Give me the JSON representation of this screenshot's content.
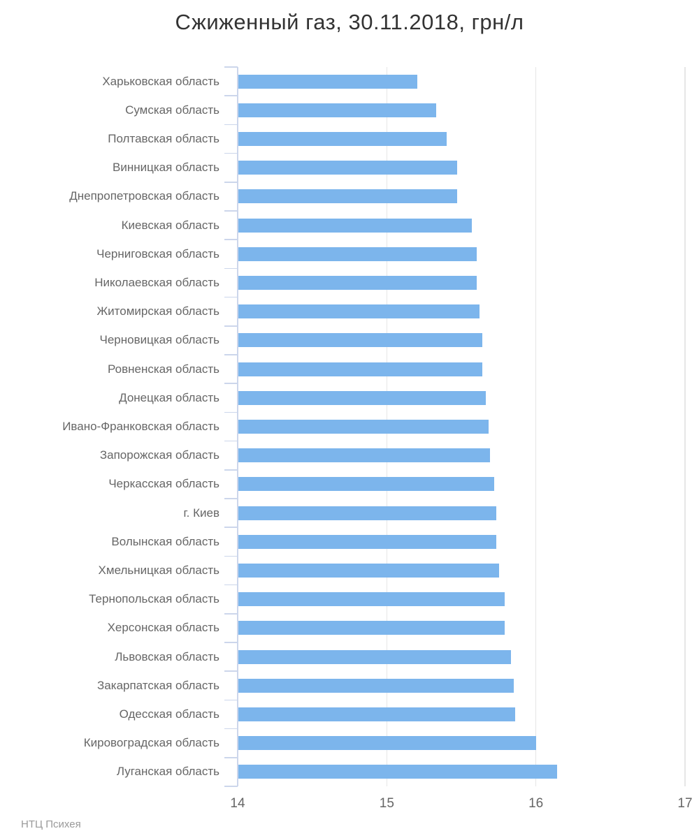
{
  "title": "Сжиженный газ, 30.11.2018, грн/л",
  "credit": "НТЦ Психея",
  "chart_data": {
    "type": "bar",
    "orientation": "horizontal",
    "title": "Сжиженный газ, 30.11.2018, грн/л",
    "xlabel": "",
    "ylabel": "",
    "xlim": [
      14,
      17
    ],
    "xticks": [
      "14",
      "15",
      "16",
      "17"
    ],
    "grid": true,
    "legend_position": "none",
    "credit": "НТЦ Психея",
    "categories": [
      "Харьковская область",
      "Сумская область",
      "Полтавская область",
      "Винницкая область",
      "Днепропетровская область",
      "Киевская область",
      "Черниговская область",
      "Николаевская область",
      "Житомирская область",
      "Черновицкая область",
      "Ровненская область",
      "Донецкая область",
      "Ивано-Франковская область",
      "Запорожская область",
      "Черкасская область",
      "г. Киев",
      "Волынская область",
      "Хмельницкая область",
      "Тернопольская область",
      "Херсонская область",
      "Львовская область",
      "Закарпатская область",
      "Одесская область",
      "Кировоградская область",
      "Луганская область"
    ],
    "values": [
      15.2,
      15.33,
      15.4,
      15.47,
      15.47,
      15.57,
      15.6,
      15.6,
      15.62,
      15.64,
      15.64,
      15.66,
      15.68,
      15.69,
      15.72,
      15.73,
      15.73,
      15.75,
      15.79,
      15.79,
      15.83,
      15.85,
      15.86,
      16.0,
      16.14
    ],
    "colors": {
      "bar": "#7cb5ec",
      "grid": "#e6e6e6",
      "axis": "#ccd6eb",
      "title_text": "#333333",
      "label_text": "#666666",
      "credit_text": "#999999",
      "background": "#ffffff"
    }
  }
}
